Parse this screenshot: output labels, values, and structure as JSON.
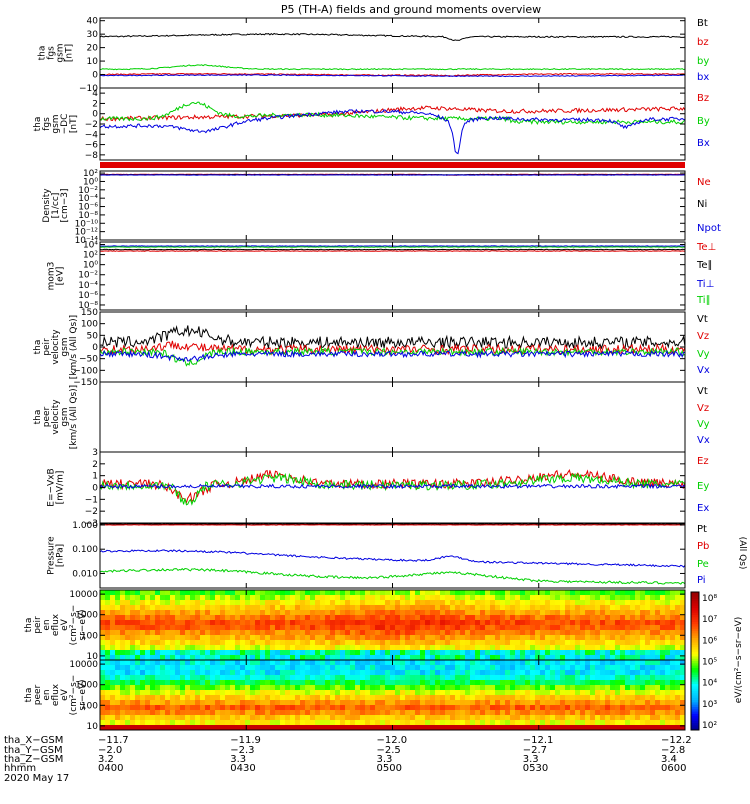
{
  "title": "P5 (TH-A) fields and ground moments overview",
  "chart_data": [
    {
      "id": "p1",
      "type": "line",
      "ylabel": [
        "tha",
        "fgs",
        "gsm",
        "[nT]"
      ],
      "yticks": [
        "40",
        "30",
        "20",
        "10",
        "0",
        "−10"
      ],
      "ylim": [
        -10,
        42
      ],
      "tickvals": [
        40,
        30,
        20,
        10,
        0,
        -10
      ],
      "series": [
        {
          "name": "Bt",
          "color": "#000000"
        },
        {
          "name": "bz",
          "color": "#e00000"
        },
        {
          "name": "by",
          "color": "#00d000"
        },
        {
          "name": "bx",
          "color": "#0000e0"
        }
      ]
    },
    {
      "id": "p2",
      "type": "line",
      "ylabel": [
        "tha",
        "fgs",
        "gsm",
        "−DC",
        "[nT]"
      ],
      "yticks": [
        "4",
        "2",
        "0",
        "−2",
        "−4",
        "−6",
        "−8"
      ],
      "ylim": [
        -9,
        5
      ],
      "tickvals": [
        4,
        2,
        0,
        -2,
        -4,
        -6,
        -8
      ],
      "series": [
        {
          "name": "Bz",
          "color": "#e00000"
        },
        {
          "name": "By",
          "color": "#00d000"
        },
        {
          "name": "Bx",
          "color": "#0000e0"
        }
      ]
    },
    {
      "id": "p3",
      "type": "line",
      "ylabel": [
        "Density",
        "[1/cc]",
        "[cm−3]"
      ],
      "yticks": [
        "10²",
        "10⁰",
        "10⁻²",
        "10⁻⁴",
        "10⁻⁶",
        "10⁻⁸",
        "10⁻¹⁰",
        "10⁻¹²",
        "10⁻¹⁴"
      ],
      "ylog": true,
      "ylim": [
        -14,
        2.5
      ],
      "tickvals": [
        2,
        0,
        -2,
        -4,
        -6,
        -8,
        -10,
        -12,
        -14
      ],
      "series": [
        {
          "name": "Ne",
          "color": "#e00000"
        },
        {
          "name": "Ni",
          "color": "#000000"
        },
        {
          "name": "Npot",
          "color": "#0000e0"
        }
      ]
    },
    {
      "id": "p4",
      "type": "line",
      "ylabel": [
        "mom3",
        "[eV]"
      ],
      "yticks": [
        "10⁴",
        "10²",
        "10⁰",
        "10⁻²",
        "10⁻⁴",
        "10⁻⁶",
        "10⁻⁸"
      ],
      "ylog": true,
      "ylim": [
        -9,
        4.5
      ],
      "tickvals": [
        4,
        2,
        0,
        -2,
        -4,
        -6,
        -8
      ],
      "series": [
        {
          "name": "Te⊥",
          "color": "#e00000"
        },
        {
          "name": "Te∥",
          "color": "#000000"
        },
        {
          "name": "Ti⊥",
          "color": "#0000e0"
        },
        {
          "name": "Ti∥",
          "color": "#00d000"
        }
      ]
    },
    {
      "id": "p5",
      "type": "line",
      "ylabel": [
        "tha",
        "peir",
        "velocity",
        "gsm",
        "[km/s (All Qs)]"
      ],
      "yticks": [
        "150",
        "100",
        "50",
        "0",
        "−50",
        "−100",
        "−150"
      ],
      "ylim": [
        -150,
        150
      ],
      "tickvals": [
        150,
        100,
        50,
        0,
        -50,
        -100,
        -150
      ],
      "series": [
        {
          "name": "Vt",
          "color": "#000000"
        },
        {
          "name": "Vz",
          "color": "#e00000"
        },
        {
          "name": "Vy",
          "color": "#00d000"
        },
        {
          "name": "Vx",
          "color": "#0000e0"
        }
      ]
    },
    {
      "id": "p6",
      "type": "line",
      "ylabel": [
        "tha",
        "peer",
        "velocity",
        "gsm",
        "[km/s (All Qs)]"
      ],
      "yticks": [],
      "series": [
        {
          "name": "Vt",
          "color": "#000000"
        },
        {
          "name": "Vz",
          "color": "#e00000"
        },
        {
          "name": "Vy",
          "color": "#00d000"
        },
        {
          "name": "Vx",
          "color": "#0000e0"
        }
      ]
    },
    {
      "id": "p7",
      "type": "line",
      "ylabel": [
        "E=−VxB",
        "[mV/m]"
      ],
      "yticks": [
        "3",
        "2",
        "1",
        "0",
        "−1",
        "−2",
        "−3"
      ],
      "ylim": [
        -3,
        3
      ],
      "tickvals": [
        3,
        2,
        1,
        0,
        -1,
        -2,
        -3
      ],
      "series": [
        {
          "name": "Ez",
          "color": "#e00000"
        },
        {
          "name": "Ey",
          "color": "#00d000"
        },
        {
          "name": "Ex",
          "color": "#0000e0"
        }
      ]
    },
    {
      "id": "p8",
      "type": "line",
      "ylabel": [
        "Pressure",
        "[nPa]"
      ],
      "yticks": [
        "1.000",
        "0.100",
        "0.010"
      ],
      "ylog": true,
      "ylim": [
        -2.6,
        0.08
      ],
      "tickvals": [
        0,
        -1,
        -2
      ],
      "series": [
        {
          "name": "Pt",
          "color": "#000000"
        },
        {
          "name": "Pb",
          "color": "#e00000"
        },
        {
          "name": "Pe",
          "color": "#00d000"
        },
        {
          "name": "Pi",
          "color": "#0000e0"
        }
      ],
      "side_label": "(All Qs)"
    },
    {
      "id": "p9",
      "type": "heatmap",
      "ylabel": [
        "tha",
        "peir",
        "en",
        "eflux",
        "eV",
        "(cm²−s−",
        "sr−eV)"
      ],
      "yticks": [
        "10000",
        "1000",
        "100",
        "10"
      ],
      "ylog": true,
      "ylim": [
        0.8,
        4.2
      ],
      "tickvals": [
        4,
        3,
        2,
        1
      ]
    },
    {
      "id": "p10",
      "type": "heatmap",
      "ylabel": [
        "tha",
        "peer",
        "en",
        "eflux",
        "eV",
        "(cm²−s−",
        "sr−eV)"
      ],
      "yticks": [
        "10000",
        "1000",
        "100",
        "10"
      ],
      "ylog": true,
      "ylim": [
        0.8,
        4.2
      ],
      "tickvals": [
        4,
        3,
        2,
        1
      ]
    }
  ],
  "colorbar": {
    "labels": [
      "10⁸",
      "10⁷",
      "10⁶",
      "10⁵",
      "10⁴",
      "10³",
      "10²"
    ],
    "title": "eV/(cm²−s−sr−eV)"
  },
  "x_axis": {
    "row_labels": [
      "tha_X−GSM",
      "tha_Y−GSM",
      "tha_Z−GSM",
      "hhmm"
    ],
    "date": "2020 May 17",
    "columns": [
      {
        "x": "−11.7",
        "y": "−2.0",
        "z": "3.2",
        "t": "0400"
      },
      {
        "x": "−11.9",
        "y": "−2.3",
        "z": "3.3",
        "t": "0430"
      },
      {
        "x": "−12.0",
        "y": "−2.5",
        "z": "3.3",
        "t": "0500"
      },
      {
        "x": "−12.1",
        "y": "−2.7",
        "z": "3.3",
        "t": "0530"
      },
      {
        "x": "−12.2",
        "y": "−2.8",
        "z": "3.4",
        "t": "0600"
      }
    ]
  }
}
